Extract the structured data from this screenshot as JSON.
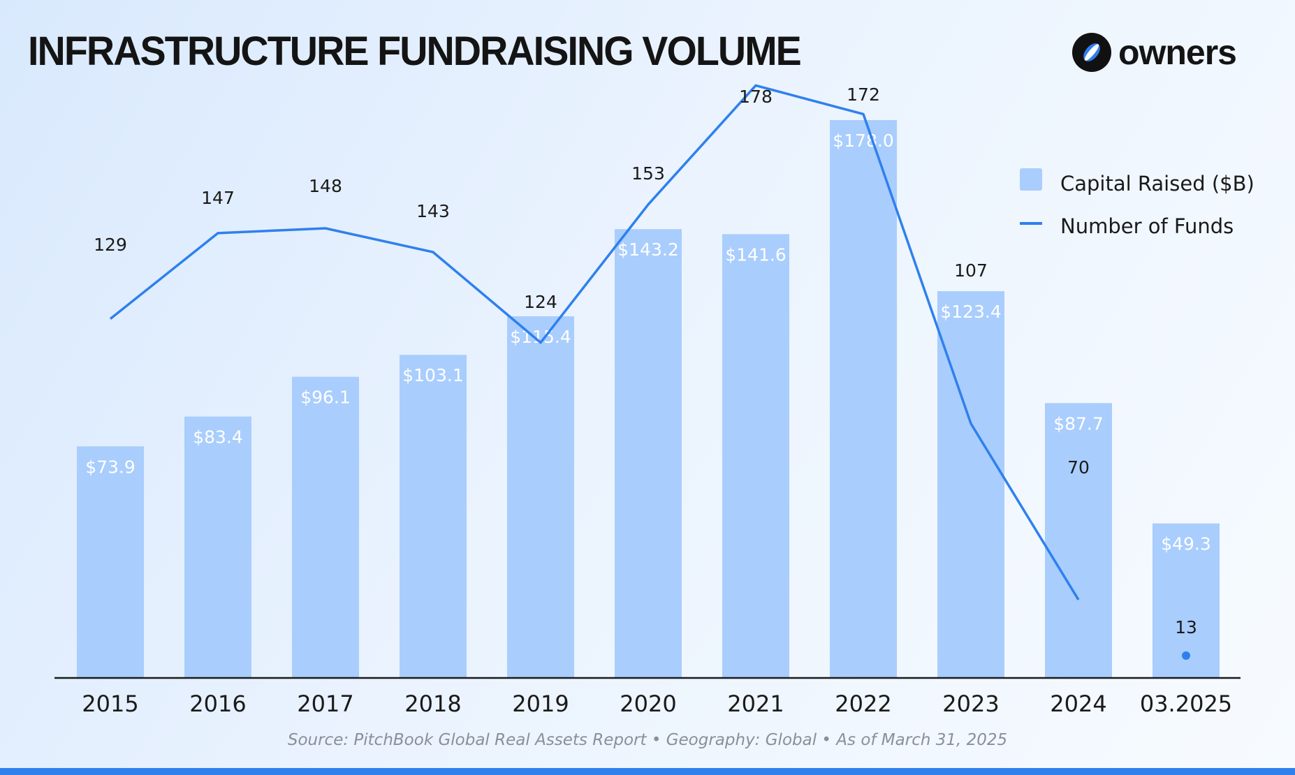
{
  "header": {
    "title": "INFRASTRUCTURE FUNDRAISING VOLUME"
  },
  "logo": {
    "text": "owners",
    "icon": "owners-logo-icon"
  },
  "footer": {
    "source": "Source: PitchBook Global Real Assets Report • Geography: Global • As of March 31, 2025"
  },
  "colors": {
    "bar": "#a9cdfd",
    "line": "#2f80ed",
    "axis": "#1a1a1a",
    "text": "#1a1a1a",
    "bar_label": "#ffffff",
    "bottom_bar": "#2f80ed"
  },
  "chart_data": {
    "type": "bar",
    "title": "INFRASTRUCTURE FUNDRAISING VOLUME",
    "categories": [
      "2015",
      "2016",
      "2017",
      "2018",
      "2019",
      "2020",
      "2021",
      "2022",
      "2023",
      "2024",
      "03.2025"
    ],
    "series": [
      {
        "name": "Capital Raised ($B)",
        "type": "bar",
        "values": [
          73.9,
          83.4,
          96.1,
          103.1,
          115.4,
          143.2,
          141.6,
          178.0,
          123.4,
          87.7,
          49.3
        ],
        "labels": [
          "$73.9",
          "$83.4",
          "$96.1",
          "$103.1",
          "$115.4",
          "$143.2",
          "$141.6",
          "$178.0",
          "$123.4",
          "$87.7",
          "$49.3"
        ]
      },
      {
        "name": "Number of Funds",
        "type": "line",
        "values": [
          129,
          147,
          148,
          143,
          124,
          153,
          178,
          172,
          107,
          70,
          13
        ],
        "labels": [
          "129",
          "147",
          "148",
          "143",
          "124",
          "153",
          "178",
          "172",
          "107",
          "70",
          "13"
        ]
      }
    ],
    "legend": [
      "Capital Raised ($B)",
      "Number of Funds"
    ],
    "legend_position": "top-right",
    "xlabel": "",
    "ylabel": "",
    "ylim": [
      0,
      178
    ],
    "grid": false
  }
}
